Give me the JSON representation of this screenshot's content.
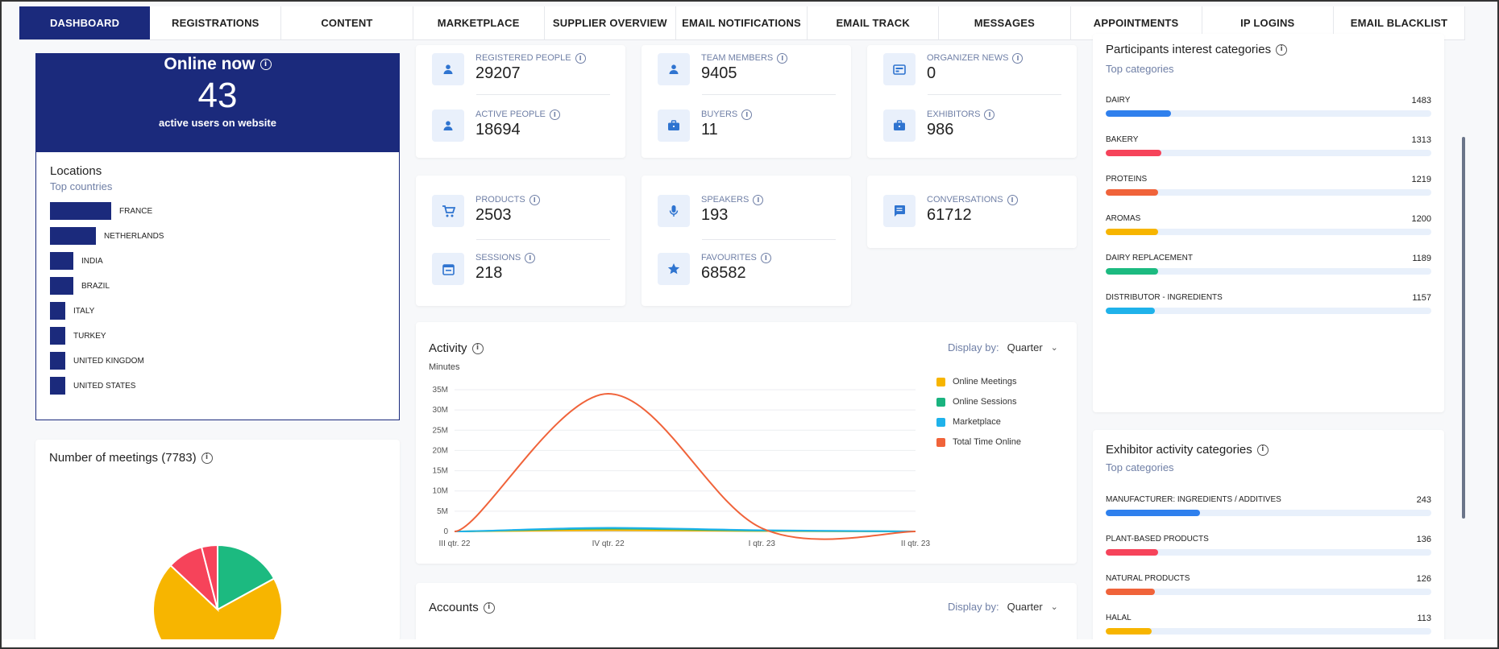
{
  "nav": {
    "tabs": [
      {
        "label": "DASHBOARD",
        "active": true
      },
      {
        "label": "REGISTRATIONS"
      },
      {
        "label": "CONTENT"
      },
      {
        "label": "MARKETPLACE"
      },
      {
        "label": "SUPPLIER OVERVIEW"
      },
      {
        "label": "EMAIL NOTIFICATIONS"
      },
      {
        "label": "EMAIL TRACK"
      },
      {
        "label": "MESSAGES"
      },
      {
        "label": "APPOINTMENTS"
      },
      {
        "label": "IP LOGINS"
      },
      {
        "label": "EMAIL BLACKLIST"
      }
    ]
  },
  "online": {
    "title": "Online now",
    "count": "43",
    "subtitle": "active users on website"
  },
  "locations": {
    "title": "Locations",
    "subtitle": "Top countries",
    "items": [
      {
        "label": "FRANCE",
        "value": 1.0
      },
      {
        "label": "NETHERLANDS",
        "value": 0.75
      },
      {
        "label": "INDIA",
        "value": 0.38
      },
      {
        "label": "BRAZIL",
        "value": 0.38
      },
      {
        "label": "ITALY",
        "value": 0.25
      },
      {
        "label": "TURKEY",
        "value": 0.25
      },
      {
        "label": "UNITED KINGDOM",
        "value": 0.25
      },
      {
        "label": "UNITED STATES",
        "value": 0.25
      }
    ]
  },
  "meetings": {
    "title": "Number of meetings (7783)"
  },
  "stats": {
    "registered_people": {
      "label": "REGISTERED PEOPLE",
      "value": "29207",
      "icon": "person-icon"
    },
    "active_people": {
      "label": "ACTIVE PEOPLE",
      "value": "18694",
      "icon": "person-icon"
    },
    "team_members": {
      "label": "TEAM MEMBERS",
      "value": "9405",
      "icon": "person-icon"
    },
    "buyers": {
      "label": "BUYERS",
      "value": "11",
      "icon": "briefcase-icon"
    },
    "organizer_news": {
      "label": "ORGANIZER NEWS",
      "value": "0",
      "icon": "news-icon"
    },
    "exhibitors": {
      "label": "EXHIBITORS",
      "value": "986",
      "icon": "briefcase-icon"
    },
    "products": {
      "label": "PRODUCTS",
      "value": "2503",
      "icon": "cart-icon"
    },
    "sessions": {
      "label": "SESSIONS",
      "value": "218",
      "icon": "calendar-icon"
    },
    "speakers": {
      "label": "SPEAKERS",
      "value": "193",
      "icon": "microphone-icon"
    },
    "favourites": {
      "label": "FAVOURITES",
      "value": "68582",
      "icon": "star-icon"
    },
    "conversations": {
      "label": "CONVERSATIONS",
      "value": "61712",
      "icon": "chat-icon"
    }
  },
  "activity": {
    "title": "Activity",
    "units": "Minutes",
    "display_by_label": "Display by:",
    "display_by_value": "Quarter"
  },
  "accounts": {
    "title": "Accounts",
    "display_by_label": "Display by:",
    "display_by_value": "Quarter"
  },
  "chart_data": [
    {
      "type": "line",
      "title": "Activity",
      "ylabel": "Minutes",
      "x": [
        "III qtr. 22",
        "IV qtr. 22",
        "I qtr. 23",
        "II qtr. 23"
      ],
      "y_ticks": [
        "0",
        "5M",
        "10M",
        "15M",
        "20M",
        "25M",
        "30M",
        "35M"
      ],
      "ylim": [
        0,
        35000000
      ],
      "grid": true,
      "legend_position": "right",
      "series": [
        {
          "name": "Online Meetings",
          "color": "#f7b500",
          "values": [
            0,
            300000,
            100000,
            0
          ]
        },
        {
          "name": "Online Sessions",
          "color": "#1ab37f",
          "values": [
            0,
            700000,
            200000,
            0
          ]
        },
        {
          "name": "Marketplace",
          "color": "#1fb2ea",
          "values": [
            0,
            900000,
            300000,
            0
          ]
        },
        {
          "name": "Total Time Online",
          "color": "#f0633a",
          "values": [
            0,
            34000000,
            800000,
            0
          ]
        }
      ]
    },
    {
      "type": "pie",
      "title": "Number of meetings (7783)",
      "slices": [
        {
          "color": "#1cba80",
          "value": 0.17
        },
        {
          "color": "#f7b500",
          "value": 0.7
        },
        {
          "color": "#f6435a",
          "value": 0.09
        }
      ]
    }
  ],
  "participants": {
    "title": "Participants interest categories",
    "subtitle": "Top categories",
    "items": [
      {
        "label": "DAIRY",
        "value": "1483",
        "fill": 0.2,
        "color": "#2f80ed"
      },
      {
        "label": "BAKERY",
        "value": "1313",
        "fill": 0.17,
        "color": "#f6435a"
      },
      {
        "label": "PROTEINS",
        "value": "1219",
        "fill": 0.16,
        "color": "#f0633a"
      },
      {
        "label": "AROMAS",
        "value": "1200",
        "fill": 0.16,
        "color": "#f7b500"
      },
      {
        "label": "DAIRY REPLACEMENT",
        "value": "1189",
        "fill": 0.16,
        "color": "#1cba80"
      },
      {
        "label": "DISTRIBUTOR - INGREDIENTS",
        "value": "1157",
        "fill": 0.15,
        "color": "#1fb2ea"
      }
    ]
  },
  "exhibitor_categories": {
    "title": "Exhibitor activity categories",
    "subtitle": "Top categories",
    "items": [
      {
        "label": "MANUFACTURER: INGREDIENTS / ADDITIVES",
        "value": "243",
        "fill": 0.29,
        "color": "#2f80ed"
      },
      {
        "label": "PLANT-BASED PRODUCTS",
        "value": "136",
        "fill": 0.16,
        "color": "#f6435a"
      },
      {
        "label": "NATURAL PRODUCTS",
        "value": "126",
        "fill": 0.15,
        "color": "#f0633a"
      },
      {
        "label": "HALAL",
        "value": "113",
        "fill": 0.14,
        "color": "#f7b500"
      }
    ]
  }
}
